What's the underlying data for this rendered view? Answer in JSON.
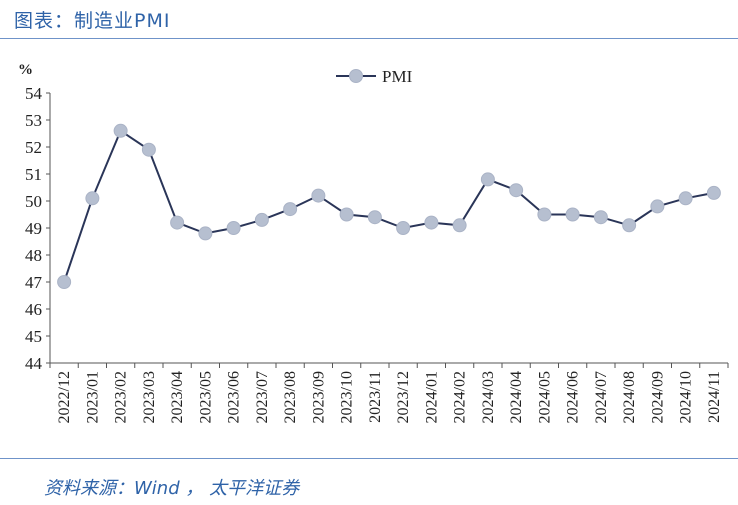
{
  "header": {
    "title": "图表：制造业PMI"
  },
  "footer": {
    "source": "资料来源：Wind ， 太平洋证券"
  },
  "colors": {
    "accent": "#2f63a8",
    "line": "#2a3558",
    "marker": "#b6bfd0",
    "rule": "#6f93c9"
  },
  "chart_data": {
    "type": "line",
    "unit_label": "%",
    "x": [
      "2022/12",
      "2023/01",
      "2023/02",
      "2023/03",
      "2023/04",
      "2023/05",
      "2023/06",
      "2023/07",
      "2023/08",
      "2023/09",
      "2023/10",
      "2023/11",
      "2023/12",
      "2024/01",
      "2024/02",
      "2024/03",
      "2024/04",
      "2024/05",
      "2024/06",
      "2024/07",
      "2024/08",
      "2024/09",
      "2024/10",
      "2024/11"
    ],
    "series": [
      {
        "name": "PMI",
        "values": [
          47.0,
          50.1,
          52.6,
          51.9,
          49.2,
          48.8,
          49.0,
          49.3,
          49.7,
          50.2,
          49.5,
          49.4,
          49.0,
          49.2,
          49.1,
          50.8,
          50.4,
          49.5,
          49.5,
          49.4,
          49.1,
          49.8,
          50.1,
          50.3
        ]
      }
    ],
    "ylim": [
      44,
      54
    ],
    "yticks": [
      44,
      45,
      46,
      47,
      48,
      49,
      50,
      51,
      52,
      53,
      54
    ],
    "grid": false,
    "legend_position": "top-center"
  }
}
